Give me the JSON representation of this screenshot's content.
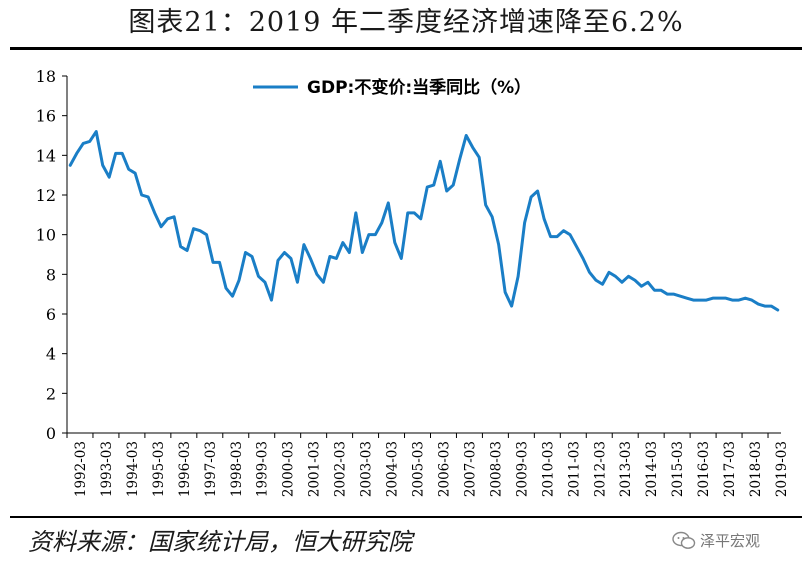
{
  "title": "图表21：2019 年二季度经济增速降至6.2%",
  "source": "资料来源：国家统计局，恒大研究院",
  "watermark": "泽平宏观",
  "watermark_icon": "wechat-icon",
  "colors": {
    "series": "#1a7ec6",
    "axis": "#000000",
    "text": "#000000"
  },
  "chart_data": {
    "type": "line",
    "title": "",
    "xlabel": "",
    "ylabel": "",
    "ylim": [
      0,
      18
    ],
    "yticks": [
      0,
      2,
      4,
      6,
      8,
      10,
      12,
      14,
      16,
      18
    ],
    "grid": false,
    "legend_position": "top-center",
    "x_tick_labels": [
      "1992-03",
      "1993-03",
      "1994-03",
      "1995-03",
      "1996-03",
      "1997-03",
      "1998-03",
      "1999-03",
      "2000-03",
      "2001-03",
      "2002-03",
      "2003-03",
      "2004-03",
      "2005-03",
      "2006-03",
      "2007-03",
      "2008-03",
      "2009-03",
      "2010-03",
      "2011-03",
      "2012-03",
      "2013-03",
      "2014-03",
      "2015-03",
      "2016-03",
      "2017-03",
      "2018-03",
      "2019-03"
    ],
    "series": [
      {
        "name": "GDP:不变价:当季同比（%）",
        "color": "#1a7ec6",
        "values": [
          13.5,
          14.1,
          14.6,
          14.7,
          15.2,
          13.5,
          12.9,
          14.1,
          14.1,
          13.3,
          13.1,
          12.0,
          11.9,
          11.1,
          10.4,
          10.8,
          10.9,
          9.4,
          9.2,
          10.3,
          10.2,
          10.0,
          8.6,
          8.6,
          7.3,
          6.9,
          7.7,
          9.1,
          8.9,
          7.9,
          7.6,
          6.7,
          8.7,
          9.1,
          8.8,
          7.6,
          9.5,
          8.8,
          8.0,
          7.6,
          8.9,
          8.8,
          9.6,
          9.1,
          11.1,
          9.1,
          10.0,
          10.0,
          10.6,
          11.6,
          9.6,
          8.8,
          11.1,
          11.1,
          10.8,
          12.4,
          12.5,
          13.7,
          12.2,
          12.5,
          13.8,
          15.0,
          14.4,
          13.9,
          11.5,
          10.9,
          9.5,
          7.1,
          6.4,
          7.9,
          10.6,
          11.9,
          12.2,
          10.8,
          9.9,
          9.9,
          10.2,
          10.0,
          9.4,
          8.8,
          8.1,
          7.7,
          7.5,
          8.1,
          7.9,
          7.6,
          7.9,
          7.7,
          7.4,
          7.6,
          7.2,
          7.2,
          7.0,
          7.0,
          6.9,
          6.8,
          6.7,
          6.7,
          6.7,
          6.8,
          6.8,
          6.8,
          6.7,
          6.7,
          6.8,
          6.7,
          6.5,
          6.4,
          6.4,
          6.2
        ]
      }
    ]
  }
}
